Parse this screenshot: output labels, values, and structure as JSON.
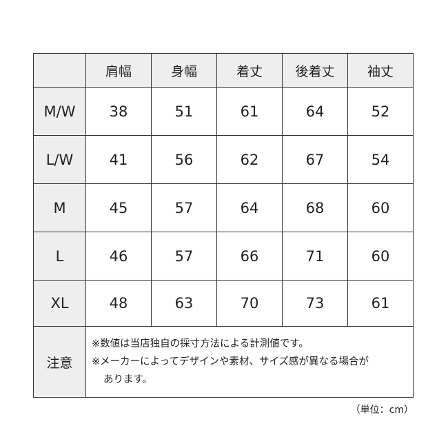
{
  "headers": [
    "",
    "肩幅",
    "身幅",
    "着丈",
    "後着丈",
    "袖丈"
  ],
  "rows": [
    {
      "size": "M/W",
      "values": [
        "38",
        "51",
        "61",
        "64",
        "52"
      ]
    },
    {
      "size": "L/W",
      "values": [
        "41",
        "56",
        "62",
        "67",
        "54"
      ]
    },
    {
      "size": "M",
      "values": [
        "45",
        "57",
        "64",
        "68",
        "60"
      ]
    },
    {
      "size": "L",
      "values": [
        "46",
        "57",
        "66",
        "71",
        "60"
      ]
    },
    {
      "size": "XL",
      "values": [
        "48",
        "63",
        "70",
        "73",
        "61"
      ]
    }
  ],
  "note": {
    "label": "注意",
    "line1": "※数値は当店独自の採寸方法による計測値です。",
    "line2": "※メーカーによってデザインや素材、サイズ感が異なる場合が",
    "line3": "あります。"
  },
  "unit": "（単位：cm）",
  "colors": {
    "label_bg": "#eeeeee",
    "border": "#333333"
  }
}
